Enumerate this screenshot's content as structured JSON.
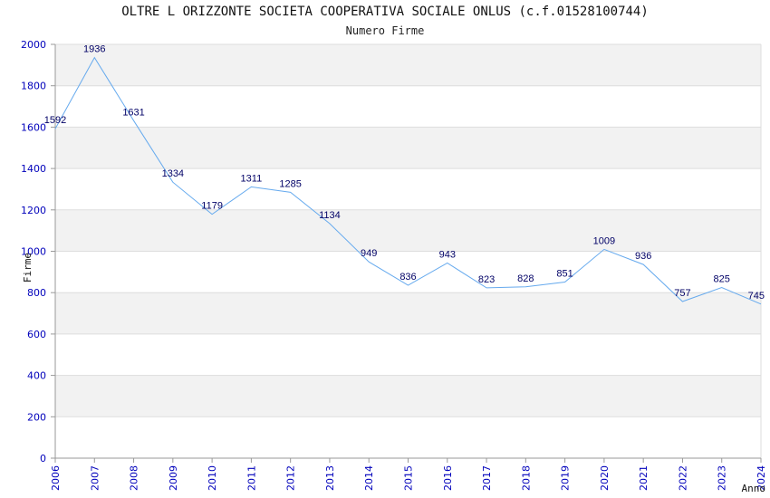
{
  "chart_data": {
    "type": "line",
    "title": "OLTRE L ORIZZONTE SOCIETA COOPERATIVA SOCIALE ONLUS (c.f.01528100744)",
    "subtitle": "Numero Firme",
    "xlabel": "Anno",
    "ylabel": "Firme",
    "x": [
      2006,
      2007,
      2008,
      2009,
      2010,
      2011,
      2012,
      2013,
      2014,
      2015,
      2016,
      2017,
      2018,
      2019,
      2020,
      2021,
      2022,
      2023,
      2024
    ],
    "values": [
      1592,
      1936,
      1631,
      1334,
      1179,
      1311,
      1285,
      1134,
      949,
      836,
      943,
      823,
      828,
      851,
      1009,
      936,
      757,
      825,
      745
    ],
    "ylim": [
      0,
      2000
    ],
    "yticks": [
      0,
      200,
      400,
      600,
      800,
      1000,
      1200,
      1400,
      1600,
      1800,
      2000
    ],
    "grid": true,
    "colors": {
      "line": "#66aaee",
      "band": "#f2f2f2",
      "tick": "#0000bb",
      "data_label": "#000066"
    }
  }
}
